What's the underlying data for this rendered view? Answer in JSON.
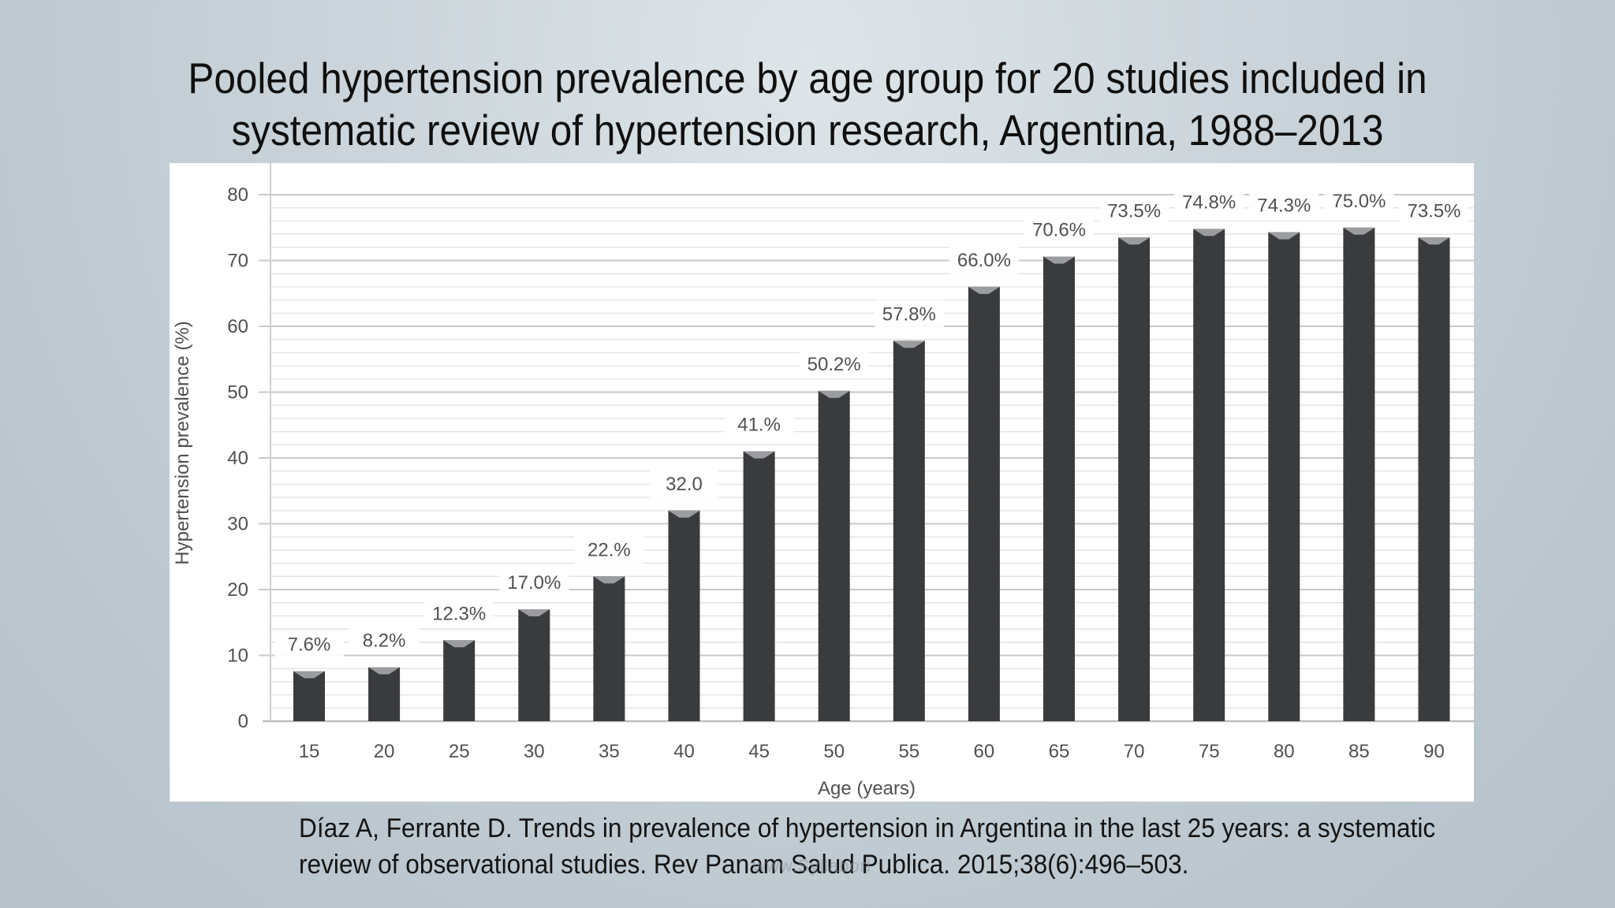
{
  "slide": {
    "title_line1": "Pooled hypertension prevalence by age group for 20 studies included in",
    "title_line2": "systematic review of hypertension research, Argentina, 1988–2013",
    "citation_line1": "Díaz A, Ferrante D. Trends in prevalence of hypertension in Argentina in the last 25 years: a systematic",
    "citation_line2": "review of observational studies. Rev Panam Salud Publica. 2015;38(6):496–503.",
    "watermark": "www.Syllaborl"
  },
  "colors": {
    "bar": "#3a3b3d",
    "bar_cap": "#9a9c9f",
    "grid_major": "#c9c9c9",
    "grid_minor": "#e2e2e2",
    "tick_text": "#505050"
  },
  "chart_data": {
    "type": "bar",
    "title": "Pooled hypertension prevalence by age group for 20 studies included in systematic review of hypertension research, Argentina, 1988–2013",
    "xlabel": "Age (years)",
    "ylabel": "Hypertension prevalence (%)",
    "ylim": [
      0,
      80
    ],
    "yticks": [
      0,
      10,
      20,
      30,
      40,
      50,
      60,
      70,
      80
    ],
    "grid": true,
    "categories": [
      "15",
      "20",
      "25",
      "30",
      "35",
      "40",
      "45",
      "50",
      "55",
      "60",
      "65",
      "70",
      "75",
      "80",
      "85",
      "90"
    ],
    "values": [
      7.6,
      8.2,
      12.3,
      17.0,
      22.0,
      32.0,
      41.0,
      50.2,
      57.8,
      66.0,
      70.6,
      73.5,
      74.8,
      74.3,
      75.0,
      73.5
    ],
    "data_labels": [
      "7.6%",
      "8.2%",
      "12.3%",
      "17.0%",
      "22.%",
      "32.0",
      "41.%",
      "50.2%",
      "57.8%",
      "66.0%",
      "70.6%",
      "73.5%",
      "74.8%",
      "74.3%",
      "75.0%",
      "73.5%"
    ]
  }
}
